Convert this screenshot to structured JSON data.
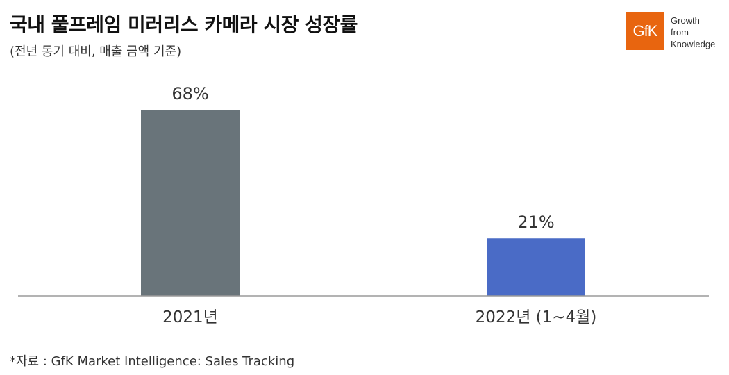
{
  "header": {
    "title": "국내 풀프레임 미러리스 카메라 시장 성장률",
    "subtitle": "(전년 동기 대비, 매출 금액 기준)"
  },
  "logo": {
    "brand": "GfK",
    "tagline": [
      "Growth",
      "from",
      "Knowledge"
    ],
    "color": "#e8650f"
  },
  "chart_data": {
    "type": "bar",
    "categories": [
      "2021년",
      "2022년 (1~4월)"
    ],
    "values": [
      68,
      21
    ],
    "data_labels": [
      "68%",
      "21%"
    ],
    "unit": "%",
    "colors": [
      "#69747a",
      "#4a6bc6"
    ],
    "ylim": [
      0,
      100
    ],
    "grid": false,
    "legend": "none"
  },
  "footer": {
    "source": "*자료 : GfK Market Intelligence: Sales Tracking"
  }
}
